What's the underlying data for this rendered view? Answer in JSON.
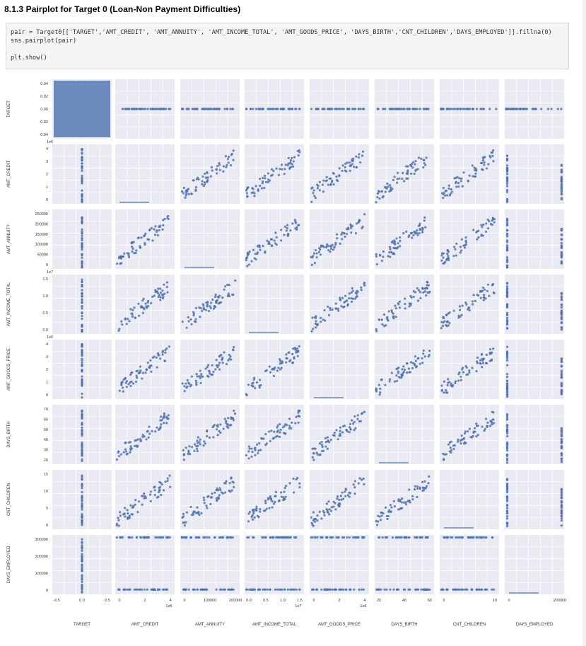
{
  "heading": "8.1.3 Pairplot for Target 0 (Loan-Non Payment Difficulties)",
  "code": {
    "line1": "pair = Target0[['TARGET','AMT_CREDIT', 'AMT_ANNUITY', 'AMT_INCOME_TOTAL', 'AMT_GOODS_PRICE', 'DAYS_BIRTH','CNT_CHILDREN','DAYS_EMPLOYED']].fillna(0)",
    "line2": "sns.pairplot(pair)",
    "line3": "plt.show()"
  },
  "colors": {
    "point": "#4c72b0",
    "panel_bg": "#eaeaf2",
    "grid": "#ffffff"
  },
  "chart_data": {
    "type": "scatter",
    "variables": [
      "TARGET",
      "AMT_CREDIT",
      "AMT_ANNUITY",
      "AMT_INCOME_TOTAL",
      "AMT_GOODS_PRICE",
      "DAYS_BIRTH",
      "CNT_CHILDREN",
      "DAYS_EMPLOYED"
    ],
    "row_labels": [
      "TARGET",
      "AMT_CREDIT",
      "AMT_ANNUITY",
      "AMT_INCOME_TOTAL",
      "AMT_GOODS_PRICE",
      "DAYS_BIRTH",
      "CNT_CHILDREN",
      "DAYS_EMPLOYED"
    ],
    "col_labels": [
      "TARGET",
      "AMT_CREDIT",
      "AMT_ANNUITY",
      "AMT_INCOME_TOTAL",
      "AMT_GOODS_PRICE",
      "DAYS_BIRTH",
      "CNT_CHILDREN",
      "DAYS_EMPLOYED"
    ],
    "diagonal": "histogram",
    "offdiagonal": "scatter",
    "y_ticks": [
      {
        "labels": [
          "0.04",
          "0.02",
          "0.00",
          "-0.02",
          "-0.04"
        ],
        "multiplier": ""
      },
      {
        "labels": [
          "4",
          "3",
          "2",
          "1",
          "0"
        ],
        "multiplier": "1e6"
      },
      {
        "labels": [
          "250000",
          "200000",
          "150000",
          "100000",
          "50000",
          "0"
        ],
        "multiplier": ""
      },
      {
        "labels": [
          "1.5",
          "1.0",
          "0.5",
          "0.0"
        ],
        "multiplier": "1e7"
      },
      {
        "labels": [
          "4",
          "3",
          "2",
          "1",
          "0"
        ],
        "multiplier": "1e6"
      },
      {
        "labels": [
          "70",
          "60",
          "50",
          "40",
          "30",
          "20"
        ],
        "multiplier": ""
      },
      {
        "labels": [
          "15",
          "10",
          "5",
          "0"
        ],
        "multiplier": ""
      },
      {
        "labels": [
          "300000",
          "200000",
          "100000",
          "0"
        ],
        "multiplier": ""
      }
    ],
    "x_ticks": [
      {
        "labels": [
          "-0.5",
          "0.0",
          "0.5"
        ],
        "multiplier": ""
      },
      {
        "labels": [
          "0",
          "2",
          "4"
        ],
        "multiplier": "1e6"
      },
      {
        "labels": [
          "0",
          "100000",
          "200000"
        ],
        "multiplier": ""
      },
      {
        "labels": [
          "0.0",
          "0.5",
          "1.0",
          "1.5"
        ],
        "multiplier": "1e7"
      },
      {
        "labels": [
          "0",
          "2",
          "4"
        ],
        "multiplier": "1e6"
      },
      {
        "labels": [
          "20",
          "40",
          "60"
        ],
        "multiplier": ""
      },
      {
        "labels": [
          "0",
          "10"
        ],
        "multiplier": ""
      },
      {
        "labels": [
          "0",
          "200000"
        ],
        "multiplier": ""
      }
    ],
    "grid": true
  }
}
